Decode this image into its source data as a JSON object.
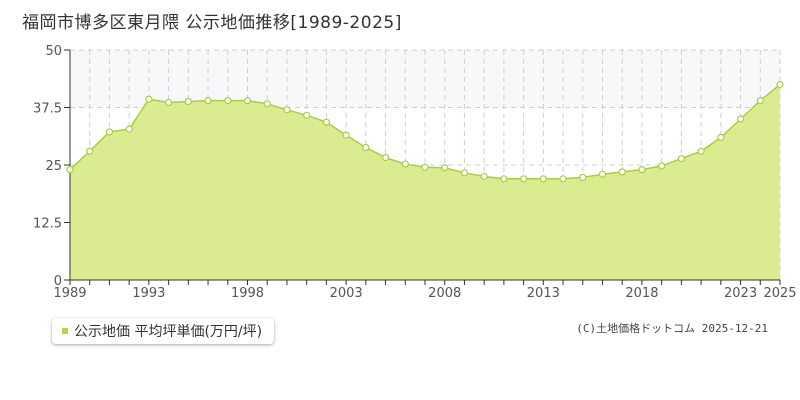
{
  "title": "福岡市博多区東月隈 公示地価推移[1989-2025]",
  "legend": {
    "label": "公示地価 平均坪単価(万円/坪)",
    "color": "#b6d645"
  },
  "credit": "(C)土地価格ドットコム 2025-12-21",
  "colors": {
    "area_fill": "#dbeb8f",
    "line": "#a9cf3c",
    "marker_stroke": "#a9cf3c",
    "marker_fill": "#ffffff",
    "upper_band": "#f8f8fb",
    "grid": "#d0d0d0",
    "axis": "#333333"
  },
  "chart_data": {
    "type": "area",
    "x": [
      1989,
      1990,
      1991,
      1992,
      1993,
      1994,
      1995,
      1996,
      1997,
      1998,
      1999,
      2000,
      2001,
      2002,
      2003,
      2004,
      2005,
      2006,
      2007,
      2008,
      2009,
      2010,
      2011,
      2012,
      2013,
      2014,
      2015,
      2016,
      2017,
      2018,
      2019,
      2020,
      2021,
      2022,
      2023,
      2024,
      2025
    ],
    "series": [
      {
        "values": [
          24.0,
          28.0,
          32.2,
          32.8,
          39.3,
          38.6,
          38.8,
          39.0,
          39.0,
          39.0,
          38.3,
          37.0,
          35.8,
          34.3,
          31.5,
          28.8,
          26.6,
          25.2,
          24.5,
          24.4,
          23.3,
          22.5,
          22.0,
          22.0,
          22.0,
          22.0,
          22.3,
          23.0,
          23.5,
          24.0,
          24.8,
          26.4,
          28.0,
          31.0,
          35.0,
          39.0,
          42.5
        ]
      }
    ],
    "xlabel": "",
    "ylabel": "",
    "xlim": [
      1989,
      2025
    ],
    "ylim": [
      0,
      50
    ],
    "yticks": [
      0,
      12.5,
      25,
      37.5,
      50
    ],
    "ytick_labels": [
      "0",
      "12.5",
      "25",
      "37.5",
      "50"
    ],
    "xticks": [
      1989,
      1993,
      1998,
      2003,
      2008,
      2013,
      2018,
      2023,
      2025
    ],
    "xtick_labels": [
      "1989",
      "1993",
      "1998",
      "2003",
      "2008",
      "2013",
      "2018",
      "2023",
      "2025"
    ],
    "grid": true
  }
}
